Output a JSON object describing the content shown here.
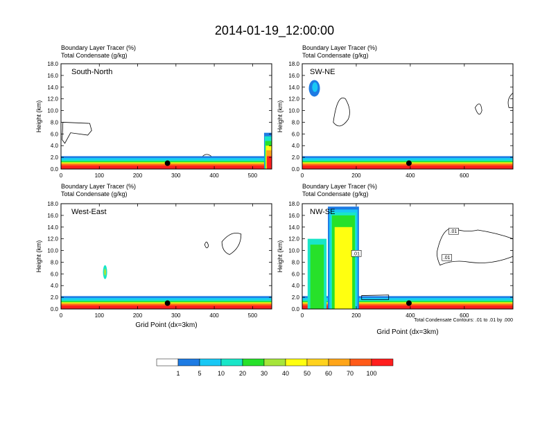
{
  "title": "2014-01-19_12:00:00",
  "footnote": "Total Condensate Contours: .01 to .01 by .000",
  "colors": {
    "scale": [
      "#ffffff",
      "#1e7be3",
      "#19c8f5",
      "#19e6c8",
      "#27e12a",
      "#a6e53a",
      "#ffff10",
      "#ffd21e",
      "#ffa519",
      "#ff5a19",
      "#ff1e1e"
    ],
    "contour": "#000000"
  },
  "colorbar": {
    "labels": [
      "1",
      "5",
      "10",
      "20",
      "30",
      "40",
      "50",
      "60",
      "70",
      "100"
    ]
  },
  "chart_data": [
    {
      "type": "heatmap",
      "panel_label": "South-North",
      "title_lines": [
        "Boundary Layer Tracer   (%)",
        "Total Condensate   (g/kg)"
      ],
      "xlabel": "",
      "ylabel": "Height (km)",
      "xlim": [
        0,
        550
      ],
      "ylim": [
        0,
        18
      ],
      "xticks": [
        0,
        100,
        200,
        300,
        400,
        500
      ],
      "yticks": [
        "0.0",
        "2.0",
        "4.0",
        "6.0",
        "8.0",
        "10.0",
        "12.0",
        "14.0",
        "16.0",
        "18.0"
      ],
      "marker_x": 278,
      "marker_y": 1.0
    },
    {
      "type": "heatmap",
      "panel_label": "SW-NE",
      "title_lines": [
        "Boundary Layer Tracer   (%)",
        "Total Condensate   (g/kg)"
      ],
      "xlabel": "",
      "ylabel": "Height (km)",
      "xlim": [
        0,
        780
      ],
      "ylim": [
        0,
        18
      ],
      "xticks": [
        0,
        200,
        400,
        600
      ],
      "yticks": [
        "0.0",
        "2.0",
        "4.0",
        "6.0",
        "8.0",
        "10.0",
        "12.0",
        "14.0",
        "16.0",
        "18.0"
      ],
      "marker_x": 395,
      "marker_y": 1.0
    },
    {
      "type": "heatmap",
      "panel_label": "West-East",
      "title_lines": [
        "Boundary Layer Tracer   (%)",
        "Total Condensate   (g/kg)"
      ],
      "xlabel": "Grid Point (dx=3km)",
      "ylabel": "Height (km)",
      "xlim": [
        0,
        550
      ],
      "ylim": [
        0,
        18
      ],
      "xticks": [
        0,
        100,
        200,
        300,
        400,
        500
      ],
      "yticks": [
        "0.0",
        "2.0",
        "4.0",
        "6.0",
        "8.0",
        "10.0",
        "12.0",
        "14.0",
        "16.0",
        "18.0"
      ],
      "marker_x": 278,
      "marker_y": 1.0
    },
    {
      "type": "heatmap",
      "panel_label": "NW-SE",
      "title_lines": [
        "Boundary Layer Tracer   (%)",
        "Total Condensate   (g/kg)"
      ],
      "xlabel": "Grid Point (dx=3km)",
      "ylabel": "Height (km)",
      "xlim": [
        0,
        780
      ],
      "ylim": [
        0,
        18
      ],
      "xticks": [
        0,
        200,
        400,
        600
      ],
      "yticks": [
        "0.0",
        "2.0",
        "4.0",
        "6.0",
        "8.0",
        "10.0",
        "12.0",
        "14.0",
        "16.0",
        "18.0"
      ],
      "marker_x": 395,
      "marker_y": 1.0,
      "contour_labels": [
        ".01",
        ".01",
        ".01"
      ]
    }
  ]
}
